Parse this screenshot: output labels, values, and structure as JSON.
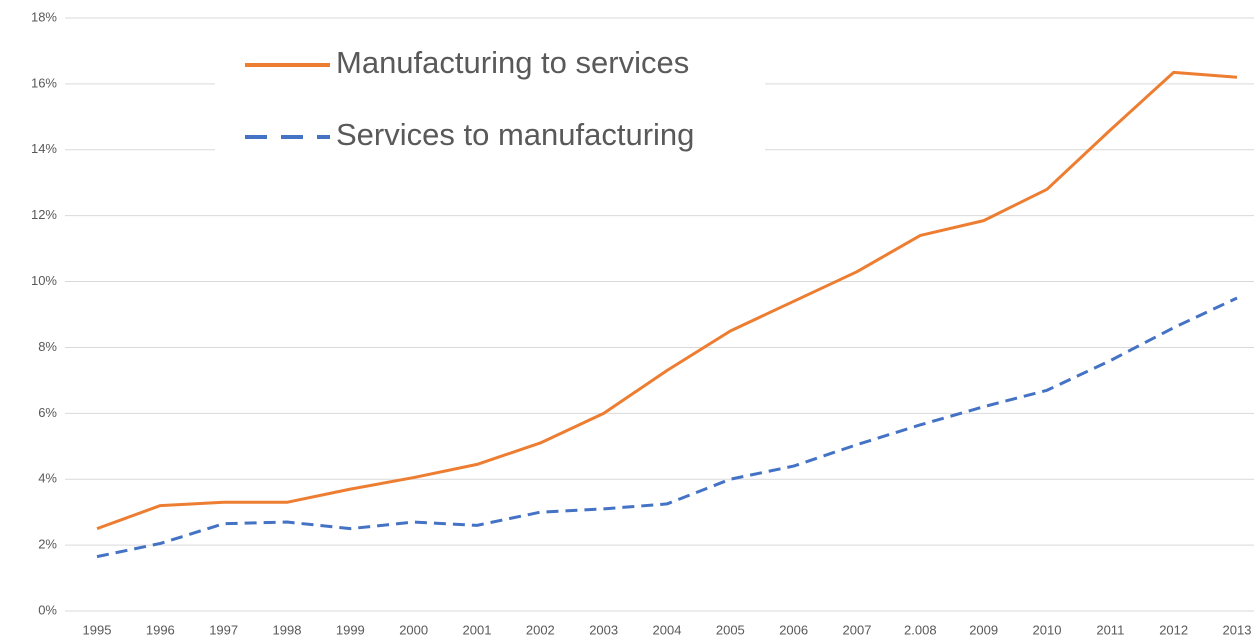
{
  "chart_data": {
    "type": "line",
    "categories": [
      "1995",
      "1996",
      "1997",
      "1998",
      "1999",
      "2000",
      "2001",
      "2002",
      "2003",
      "2004",
      "2005",
      "2006",
      "2007",
      "2.008",
      "2009",
      "2010",
      "2011",
      "2012",
      "2013"
    ],
    "series": [
      {
        "name": "Manufacturing to services",
        "color": "#ed7d31",
        "line_style": "solid",
        "values": [
          2.5,
          3.2,
          3.3,
          3.3,
          3.7,
          4.05,
          4.45,
          5.1,
          6.0,
          7.3,
          8.5,
          9.4,
          10.3,
          11.4,
          11.85,
          12.8,
          14.6,
          16.35,
          16.2
        ]
      },
      {
        "name": "Services to manufacturing",
        "color": "#4472c4",
        "line_style": "dashed",
        "values": [
          1.65,
          2.05,
          2.65,
          2.7,
          2.5,
          2.7,
          2.6,
          3.0,
          3.1,
          3.25,
          4.0,
          4.4,
          5.05,
          5.65,
          6.2,
          6.7,
          7.6,
          8.6,
          9.5
        ]
      }
    ],
    "ylim": [
      0,
      18
    ],
    "yticks": [
      {
        "value": 0,
        "label": "0%"
      },
      {
        "value": 2,
        "label": "2%"
      },
      {
        "value": 4,
        "label": "4%"
      },
      {
        "value": 6,
        "label": "6%"
      },
      {
        "value": 8,
        "label": "8%"
      },
      {
        "value": 10,
        "label": "10%"
      },
      {
        "value": 12,
        "label": "12%"
      },
      {
        "value": 14,
        "label": "14%"
      },
      {
        "value": 16,
        "label": "16%"
      },
      {
        "value": 18,
        "label": "18%"
      }
    ],
    "grid": true,
    "legend": "upper left"
  }
}
